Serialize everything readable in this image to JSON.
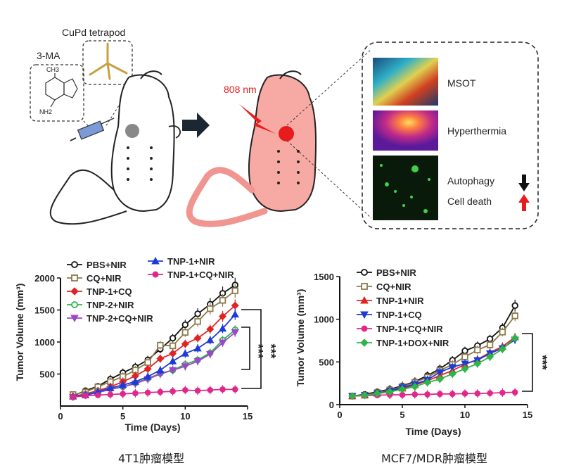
{
  "illustration": {
    "tetrapod_label": "CuPd tetrapod",
    "drug_label": "3-MA",
    "methyl_label": "CH3",
    "amine_label": "NH2",
    "laser_label": "808 nm",
    "panel_labels": [
      "MSOT",
      "Hyperthermia",
      "Autophagy",
      "Cell death"
    ]
  },
  "captions": {
    "left": "4T1肿瘤模型",
    "right": "MCF7/MDR肿瘤模型"
  },
  "chart_data": [
    {
      "type": "line",
      "xlabel": "Time (Days)",
      "ylabel": "Tumor Volume (mm³)",
      "xlim": [
        0,
        15
      ],
      "ylim": [
        0,
        2000
      ],
      "xticks": [
        "0",
        "5",
        "10",
        "15"
      ],
      "yticks": [
        "500",
        "1000",
        "1500",
        "2000"
      ],
      "significance": [
        "***",
        "***"
      ],
      "x": [
        1,
        2,
        3,
        4,
        5,
        6,
        7,
        8,
        9,
        10,
        11,
        12,
        13,
        14
      ],
      "series": [
        {
          "name": "PBS+NIR",
          "color": "#111111",
          "marker": "circle-open",
          "values": [
            160,
            240,
            310,
            420,
            520,
            610,
            720,
            890,
            1060,
            1270,
            1440,
            1590,
            1760,
            1890
          ]
        },
        {
          "name": "CQ+NIR",
          "color": "#8b7a4a",
          "marker": "square-open",
          "values": [
            180,
            220,
            300,
            380,
            460,
            560,
            680,
            950,
            940,
            1150,
            1320,
            1520,
            1650,
            1800
          ]
        },
        {
          "name": "TNP-1+CQ",
          "color": "#e02424",
          "marker": "diamond",
          "values": [
            150,
            190,
            240,
            300,
            380,
            470,
            580,
            740,
            820,
            970,
            1060,
            1200,
            1400,
            1570
          ]
        },
        {
          "name": "TNP-2+NIR",
          "color": "#2db54a",
          "marker": "circle-open",
          "values": [
            140,
            180,
            220,
            270,
            300,
            360,
            430,
            510,
            560,
            650,
            720,
            830,
            1030,
            1190
          ]
        },
        {
          "name": "TNP-2+CQ+NIR",
          "color": "#9b47c9",
          "marker": "triangle-down",
          "values": [
            140,
            170,
            210,
            260,
            300,
            350,
            420,
            500,
            560,
            620,
            700,
            810,
            990,
            1150
          ]
        },
        {
          "name": "TNP-1+NIR",
          "color": "#1f3bd6",
          "marker": "triangle",
          "values": [
            150,
            170,
            220,
            280,
            330,
            380,
            460,
            560,
            700,
            820,
            900,
            1030,
            1210,
            1430
          ]
        },
        {
          "name": "TNP-1+CQ+NIR",
          "color": "#e0288a",
          "marker": "circle",
          "values": [
            140,
            160,
            170,
            180,
            190,
            200,
            210,
            220,
            230,
            250,
            240,
            250,
            260,
            260
          ]
        }
      ]
    },
    {
      "type": "line",
      "xlabel": "Time (Days)",
      "ylabel": "Tumor Volume (mm³)",
      "xlim": [
        0,
        15
      ],
      "ylim": [
        0,
        1500
      ],
      "xticks": [
        "0",
        "5",
        "10",
        "15"
      ],
      "yticks": [
        "0",
        "500",
        "1000",
        "1500"
      ],
      "significance": [
        "***"
      ],
      "x": [
        1,
        2,
        3,
        4,
        5,
        6,
        7,
        8,
        9,
        10,
        11,
        12,
        13,
        14
      ],
      "series": [
        {
          "name": "PBS+NIR",
          "color": "#111111",
          "marker": "circle-open",
          "values": [
            100,
            120,
            150,
            180,
            220,
            270,
            340,
            420,
            520,
            630,
            690,
            770,
            900,
            1160
          ]
        },
        {
          "name": "CQ+NIR",
          "color": "#8b7a4a",
          "marker": "square-open",
          "values": [
            100,
            110,
            140,
            170,
            210,
            260,
            320,
            400,
            470,
            560,
            640,
            700,
            850,
            1040
          ]
        },
        {
          "name": "TNP-1+NIR",
          "color": "#e02424",
          "marker": "triangle",
          "values": [
            100,
            110,
            130,
            160,
            190,
            230,
            280,
            340,
            400,
            470,
            530,
            610,
            680,
            790
          ]
        },
        {
          "name": "TNP-1+CQ",
          "color": "#1f3bd6",
          "marker": "triangle-down",
          "values": [
            100,
            110,
            130,
            160,
            200,
            240,
            290,
            380,
            440,
            480,
            520,
            600,
            660,
            760
          ]
        },
        {
          "name": "TNP-1+CQ+NIR",
          "color": "#e0288a",
          "marker": "circle",
          "values": [
            100,
            105,
            110,
            115,
            115,
            120,
            120,
            125,
            125,
            130,
            130,
            135,
            140,
            145
          ]
        },
        {
          "name": "TNP-1+DOX+NIR",
          "color": "#2db54a",
          "marker": "diamond",
          "values": [
            100,
            110,
            130,
            150,
            180,
            210,
            260,
            300,
            360,
            420,
            480,
            560,
            650,
            780
          ]
        }
      ]
    }
  ]
}
